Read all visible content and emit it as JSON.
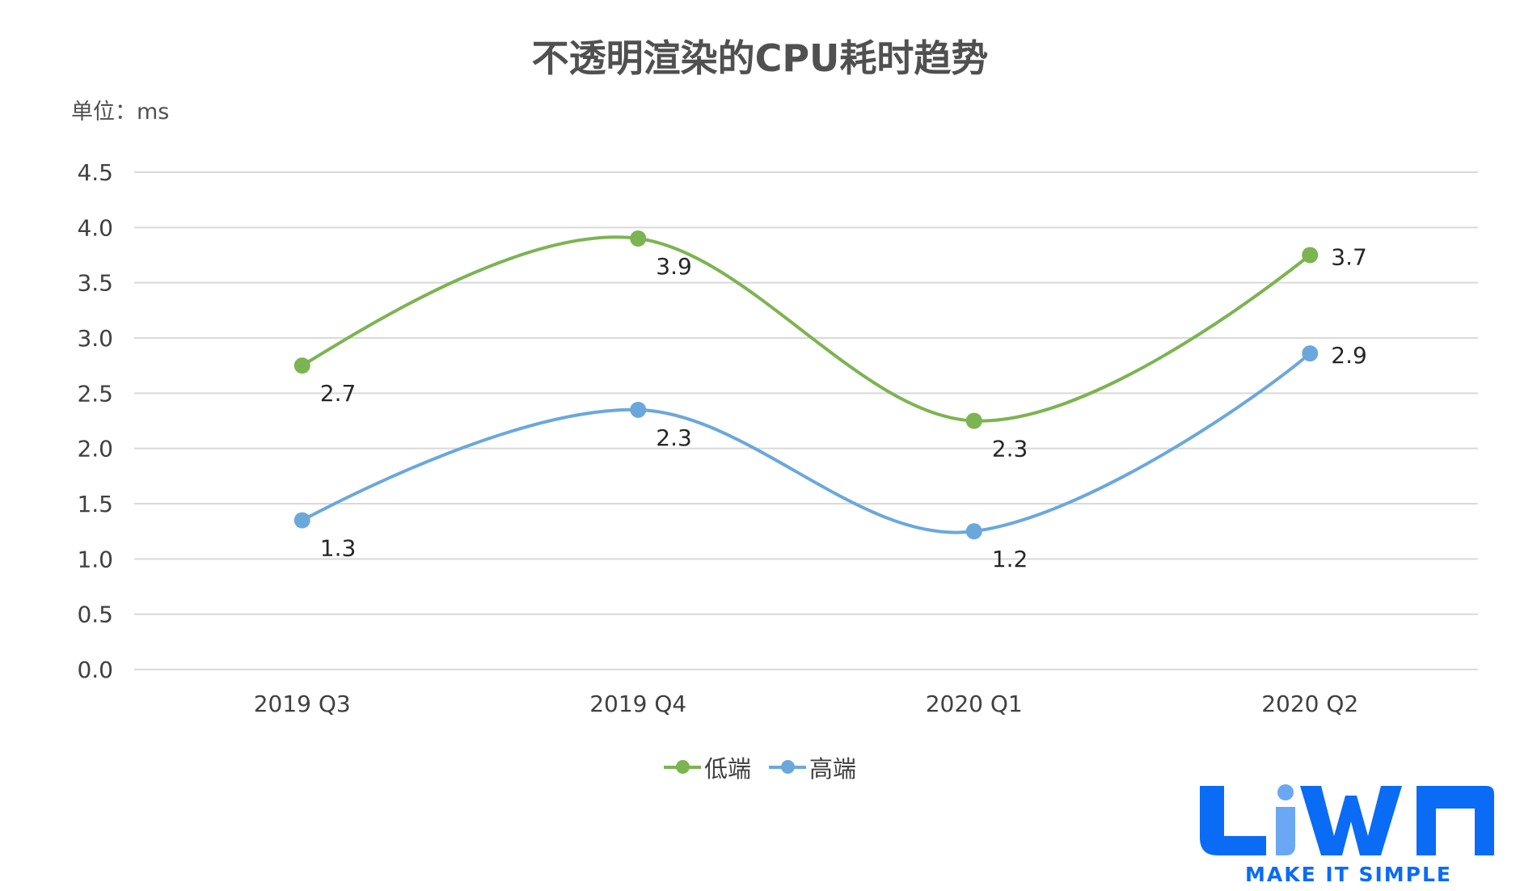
{
  "chart_data": {
    "type": "line",
    "title": "不透明渲染的CPU耗时趋势",
    "unit_label": "单位：ms",
    "categories": [
      "2019 Q3",
      "2019 Q4",
      "2020 Q1",
      "2020 Q2"
    ],
    "ylim": [
      0,
      4.5
    ],
    "yticks": [
      "0.0",
      "0.5",
      "1.0",
      "1.5",
      "2.0",
      "2.5",
      "3.0",
      "3.5",
      "4.0",
      "4.5"
    ],
    "grid": true,
    "smooth": true,
    "legend_position": "bottom",
    "series": [
      {
        "name": "低端",
        "color": "#7cb451",
        "values": [
          2.75,
          3.9,
          2.25,
          3.75
        ],
        "labels": [
          "2.7",
          "3.9",
          "2.3",
          "3.7"
        ]
      },
      {
        "name": "高端",
        "color": "#6aa8dc",
        "values": [
          1.35,
          2.35,
          1.25,
          2.86
        ],
        "labels": [
          "1.3",
          "2.3",
          "1.2",
          "2.9"
        ]
      }
    ]
  },
  "logo": {
    "text": "LiWA",
    "tagline": "MAKE IT SIMPLE",
    "color": "#0a6cf5"
  }
}
